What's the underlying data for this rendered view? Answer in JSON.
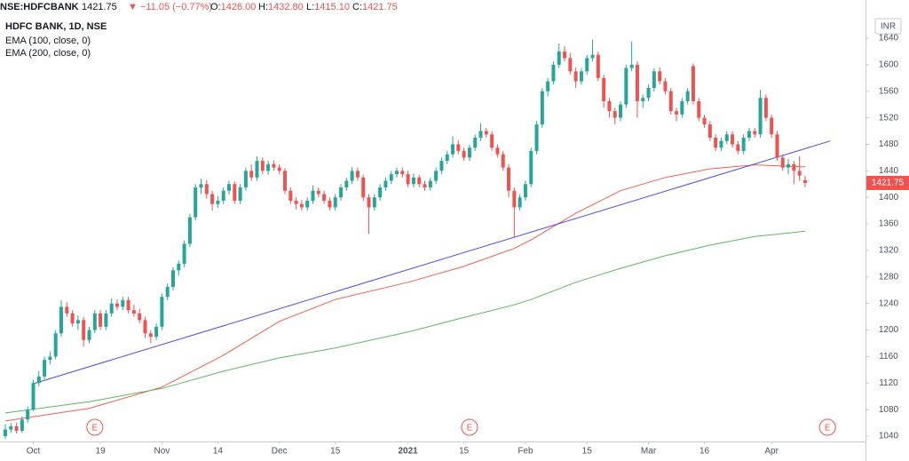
{
  "chart_data": {
    "type": "candlestick",
    "header": {
      "symbol": "NSE:HDFCBANK",
      "price": "1421.75",
      "change": "▼ −11.05 (−0.77%)",
      "ohlc": [
        {
          "key": "O:",
          "value": "1426.00"
        },
        {
          "key": "H:",
          "value": "1432.80"
        },
        {
          "key": "L:",
          "value": "1415.10"
        },
        {
          "key": "C:",
          "value": "1421.75"
        }
      ]
    },
    "title": "HDFC BANK, 1D, NSE",
    "currency": "INR",
    "up_color": "#26a69a",
    "down_color": "#ef5350",
    "candles": [
      [
        1040,
        1058,
        1036,
        1050
      ],
      [
        1050,
        1060,
        1045,
        1055
      ],
      [
        1055,
        1060,
        1044,
        1048
      ],
      [
        1048,
        1070,
        1045,
        1065
      ],
      [
        1065,
        1085,
        1060,
        1080
      ],
      [
        1080,
        1125,
        1078,
        1120
      ],
      [
        1120,
        1138,
        1115,
        1130
      ],
      [
        1130,
        1160,
        1126,
        1155
      ],
      [
        1155,
        1168,
        1148,
        1160
      ],
      [
        1160,
        1200,
        1156,
        1195
      ],
      [
        1195,
        1245,
        1190,
        1235
      ],
      [
        1235,
        1242,
        1220,
        1225
      ],
      [
        1225,
        1230,
        1205,
        1210
      ],
      [
        1210,
        1222,
        1200,
        1215
      ],
      [
        1215,
        1220,
        1175,
        1185
      ],
      [
        1185,
        1205,
        1180,
        1200
      ],
      [
        1200,
        1230,
        1195,
        1225
      ],
      [
        1225,
        1230,
        1200,
        1205
      ],
      [
        1205,
        1230,
        1200,
        1225
      ],
      [
        1225,
        1248,
        1220,
        1240
      ],
      [
        1240,
        1246,
        1230,
        1235
      ],
      [
        1235,
        1250,
        1230,
        1245
      ],
      [
        1245,
        1250,
        1225,
        1230
      ],
      [
        1230,
        1238,
        1220,
        1225
      ],
      [
        1225,
        1232,
        1210,
        1215
      ],
      [
        1215,
        1220,
        1188,
        1195
      ],
      [
        1195,
        1200,
        1180,
        1190
      ],
      [
        1190,
        1210,
        1185,
        1205
      ],
      [
        1205,
        1255,
        1200,
        1250
      ],
      [
        1250,
        1270,
        1245,
        1265
      ],
      [
        1265,
        1295,
        1260,
        1290
      ],
      [
        1290,
        1305,
        1282,
        1300
      ],
      [
        1300,
        1335,
        1295,
        1330
      ],
      [
        1330,
        1375,
        1325,
        1370
      ],
      [
        1370,
        1420,
        1365,
        1415
      ],
      [
        1415,
        1428,
        1405,
        1420
      ],
      [
        1420,
        1426,
        1398,
        1405
      ],
      [
        1405,
        1410,
        1380,
        1390
      ],
      [
        1390,
        1402,
        1384,
        1395
      ],
      [
        1395,
        1415,
        1390,
        1410
      ],
      [
        1410,
        1425,
        1404,
        1420
      ],
      [
        1420,
        1424,
        1390,
        1395
      ],
      [
        1395,
        1420,
        1390,
        1415
      ],
      [
        1415,
        1445,
        1410,
        1440
      ],
      [
        1440,
        1450,
        1425,
        1430
      ],
      [
        1430,
        1462,
        1425,
        1455
      ],
      [
        1455,
        1460,
        1435,
        1440
      ],
      [
        1440,
        1455,
        1434,
        1450
      ],
      [
        1450,
        1456,
        1440,
        1445
      ],
      [
        1445,
        1450,
        1435,
        1440
      ],
      [
        1440,
        1444,
        1405,
        1410
      ],
      [
        1410,
        1415,
        1390,
        1395
      ],
      [
        1395,
        1400,
        1382,
        1390
      ],
      [
        1390,
        1396,
        1380,
        1385
      ],
      [
        1385,
        1400,
        1380,
        1395
      ],
      [
        1395,
        1418,
        1390,
        1410
      ],
      [
        1410,
        1415,
        1400,
        1405
      ],
      [
        1405,
        1410,
        1390,
        1395
      ],
      [
        1395,
        1400,
        1380,
        1385
      ],
      [
        1385,
        1405,
        1380,
        1400
      ],
      [
        1400,
        1420,
        1395,
        1415
      ],
      [
        1415,
        1430,
        1410,
        1425
      ],
      [
        1425,
        1446,
        1420,
        1440
      ],
      [
        1440,
        1445,
        1425,
        1430
      ],
      [
        1430,
        1434,
        1395,
        1400
      ],
      [
        1400,
        1405,
        1345,
        1385
      ],
      [
        1385,
        1405,
        1380,
        1400
      ],
      [
        1400,
        1420,
        1395,
        1415
      ],
      [
        1415,
        1430,
        1410,
        1425
      ],
      [
        1425,
        1440,
        1420,
        1435
      ],
      [
        1435,
        1445,
        1430,
        1440
      ],
      [
        1440,
        1445,
        1430,
        1435
      ],
      [
        1435,
        1440,
        1415,
        1420
      ],
      [
        1420,
        1436,
        1415,
        1430
      ],
      [
        1430,
        1434,
        1415,
        1420
      ],
      [
        1420,
        1425,
        1410,
        1415
      ],
      [
        1415,
        1430,
        1410,
        1425
      ],
      [
        1425,
        1445,
        1420,
        1440
      ],
      [
        1440,
        1460,
        1435,
        1455
      ],
      [
        1455,
        1470,
        1450,
        1465
      ],
      [
        1465,
        1492,
        1460,
        1480
      ],
      [
        1480,
        1486,
        1465,
        1470
      ],
      [
        1470,
        1475,
        1455,
        1460
      ],
      [
        1460,
        1480,
        1455,
        1475
      ],
      [
        1475,
        1495,
        1470,
        1490
      ],
      [
        1490,
        1512,
        1485,
        1500
      ],
      [
        1500,
        1505,
        1490,
        1495
      ],
      [
        1495,
        1500,
        1470,
        1475
      ],
      [
        1475,
        1480,
        1460,
        1465
      ],
      [
        1465,
        1470,
        1440,
        1445
      ],
      [
        1445,
        1450,
        1400,
        1410
      ],
      [
        1410,
        1415,
        1340,
        1385
      ],
      [
        1385,
        1405,
        1380,
        1400
      ],
      [
        1400,
        1425,
        1395,
        1420
      ],
      [
        1420,
        1475,
        1415,
        1470
      ],
      [
        1470,
        1515,
        1465,
        1510
      ],
      [
        1510,
        1565,
        1505,
        1560
      ],
      [
        1560,
        1580,
        1552,
        1575
      ],
      [
        1575,
        1605,
        1570,
        1600
      ],
      [
        1600,
        1632,
        1595,
        1620
      ],
      [
        1620,
        1628,
        1605,
        1610
      ],
      [
        1610,
        1618,
        1585,
        1590
      ],
      [
        1590,
        1596,
        1565,
        1575
      ],
      [
        1575,
        1595,
        1570,
        1590
      ],
      [
        1590,
        1615,
        1585,
        1610
      ],
      [
        1610,
        1638,
        1605,
        1615
      ],
      [
        1615,
        1620,
        1575,
        1580
      ],
      [
        1580,
        1585,
        1535,
        1545
      ],
      [
        1545,
        1550,
        1520,
        1530
      ],
      [
        1530,
        1535,
        1510,
        1520
      ],
      [
        1520,
        1545,
        1515,
        1540
      ],
      [
        1540,
        1600,
        1535,
        1595
      ],
      [
        1595,
        1635,
        1590,
        1600
      ],
      [
        1600,
        1605,
        1520,
        1545
      ],
      [
        1545,
        1555,
        1535,
        1550
      ],
      [
        1550,
        1570,
        1545,
        1565
      ],
      [
        1565,
        1595,
        1560,
        1590
      ],
      [
        1590,
        1596,
        1570,
        1575
      ],
      [
        1575,
        1580,
        1555,
        1560
      ],
      [
        1560,
        1565,
        1525,
        1530
      ],
      [
        1530,
        1535,
        1515,
        1525
      ],
      [
        1525,
        1550,
        1520,
        1545
      ],
      [
        1545,
        1565,
        1540,
        1560
      ],
      [
        1598,
        1602,
        1540,
        1545
      ],
      [
        1545,
        1550,
        1515,
        1520
      ],
      [
        1520,
        1525,
        1505,
        1510
      ],
      [
        1510,
        1515,
        1485,
        1490
      ],
      [
        1490,
        1495,
        1470,
        1475
      ],
      [
        1475,
        1490,
        1470,
        1485
      ],
      [
        1485,
        1500,
        1480,
        1495
      ],
      [
        1495,
        1500,
        1475,
        1480
      ],
      [
        1480,
        1485,
        1465,
        1470
      ],
      [
        1470,
        1495,
        1465,
        1490
      ],
      [
        1490,
        1505,
        1485,
        1500
      ],
      [
        1500,
        1505,
        1490,
        1495
      ],
      [
        1495,
        1562,
        1490,
        1550
      ],
      [
        1550,
        1555,
        1515,
        1520
      ],
      [
        1520,
        1525,
        1490,
        1495
      ],
      [
        1495,
        1500,
        1455,
        1460
      ],
      [
        1460,
        1465,
        1440,
        1445
      ],
      [
        1445,
        1458,
        1435,
        1450
      ],
      [
        1450,
        1455,
        1420,
        1440
      ],
      [
        1440,
        1462,
        1425,
        1432.8
      ],
      [
        1426,
        1432.8,
        1415.1,
        1421.75
      ]
    ],
    "series": [
      {
        "name": "EMA (100, close, 0)",
        "color": "#f0604f",
        "x": [
          0,
          15,
          28,
          39,
          49,
          59,
          72,
          82,
          91,
          94,
          102,
          110,
          118,
          126,
          134,
          140,
          143
        ],
        "values": [
          1063,
          1082,
          1114,
          1162,
          1213,
          1246,
          1272,
          1296,
          1323,
          1336,
          1376,
          1410,
          1430,
          1443,
          1449,
          1447,
          1446
        ]
      },
      {
        "name": "EMA (200, close, 0)",
        "color": "#5cb85c",
        "x": [
          0,
          15,
          28,
          39,
          49,
          59,
          72,
          82,
          91,
          94,
          102,
          110,
          118,
          126,
          134,
          143
        ],
        "values": [
          1075,
          1092,
          1112,
          1138,
          1158,
          1173,
          1197,
          1219,
          1238,
          1246,
          1272,
          1293,
          1312,
          1328,
          1341,
          1349
        ]
      }
    ],
    "trendline": {
      "color": "#4a4ae8",
      "x": [
        5,
        147.5
      ],
      "values": [
        1119,
        1485
      ]
    },
    "earnings_markers": [
      {
        "x": 16,
        "label": "E"
      },
      {
        "x": 83,
        "label": "E"
      },
      {
        "x": 147,
        "label": "E"
      }
    ],
    "xlim": [
      -0.95,
      153.8
    ],
    "ylim": [
      1032,
      1697.6
    ],
    "yticks": [
      1040,
      1080,
      1120,
      1160,
      1200,
      1240,
      1280,
      1320,
      1360,
      1400,
      1440,
      1480,
      1520,
      1560,
      1600,
      1640
    ],
    "xticks": [
      {
        "value": 5,
        "label": "Oct"
      },
      {
        "value": 17,
        "label": "19"
      },
      {
        "value": 28,
        "label": "Nov"
      },
      {
        "value": 38,
        "label": "14"
      },
      {
        "value": 49,
        "label": "Dec"
      },
      {
        "value": 59,
        "label": "15"
      },
      {
        "value": 72,
        "label": "2021"
      },
      {
        "value": 82,
        "label": "15"
      },
      {
        "value": 93,
        "label": "Feb"
      },
      {
        "value": 104,
        "label": "15"
      },
      {
        "value": 115,
        "label": "Mar"
      },
      {
        "value": 125,
        "label": "16"
      },
      {
        "value": 137,
        "label": "Apr"
      }
    ],
    "grid": false
  }
}
